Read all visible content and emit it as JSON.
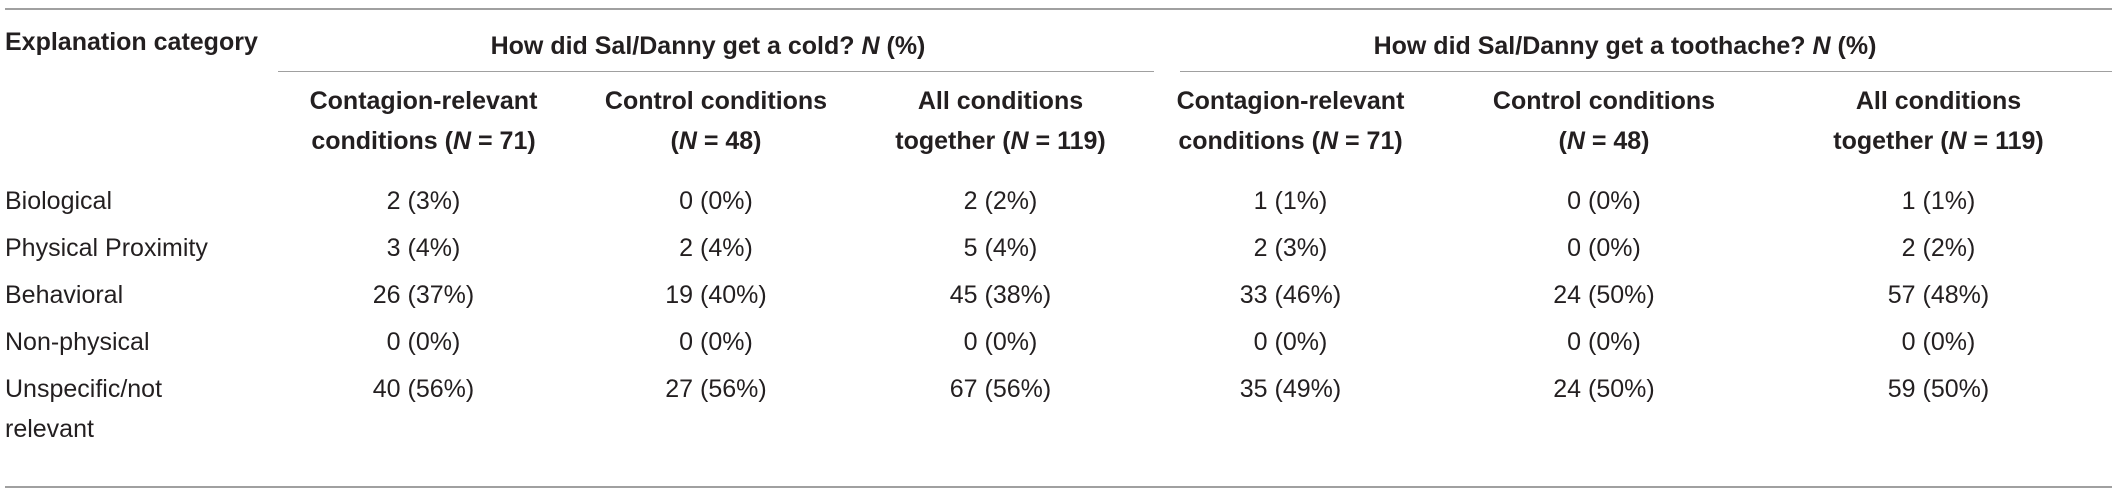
{
  "table": {
    "category_header": "Explanation category",
    "group1_text": "How did Sal/Danny get a cold? ",
    "group2_text": "How did Sal/Danny get a toothache? ",
    "n_symbol": "N",
    "pct_suffix": " (%)",
    "subheaders": [
      {
        "line1": "Contagion-relevant",
        "line2_pre": "conditions (",
        "n_symbol": "N",
        "line2_post": " = 71)"
      },
      {
        "line1": "Control conditions",
        "line2_pre": "(",
        "n_symbol": "N",
        "line2_post": " = 48)"
      },
      {
        "line1": "All conditions",
        "line2_pre": "together (",
        "n_symbol": "N",
        "line2_post": " = 119)"
      },
      {
        "line1": "Contagion-relevant",
        "line2_pre": "conditions (",
        "n_symbol": "N",
        "line2_post": " = 71)"
      },
      {
        "line1": "Control conditions",
        "line2_pre": "(",
        "n_symbol": "N",
        "line2_post": " = 48)"
      },
      {
        "line1": "All conditions",
        "line2_pre": "together (",
        "n_symbol": "N",
        "line2_post": " = 119)"
      }
    ],
    "rows": [
      {
        "label": "Biological",
        "cells": [
          "2 (3%)",
          "0 (0%)",
          "2 (2%)",
          "1 (1%)",
          "0 (0%)",
          "1 (1%)"
        ]
      },
      {
        "label": "Physical Proximity",
        "cells": [
          "3 (4%)",
          "2 (4%)",
          "5 (4%)",
          "2 (3%)",
          "0 (0%)",
          "2 (2%)"
        ]
      },
      {
        "label": "Behavioral",
        "cells": [
          "26 (37%)",
          "19 (40%)",
          "45 (38%)",
          "33 (46%)",
          "24 (50%)",
          "57 (48%)"
        ]
      },
      {
        "label": "Non-physical",
        "cells": [
          "0 (0%)",
          "0 (0%)",
          "0 (0%)",
          "0 (0%)",
          "0 (0%)",
          "0 (0%)"
        ]
      },
      {
        "label": "Unspecific/not relevant",
        "label_line1": "Unspecific/not",
        "label_line2": "relevant",
        "cells": [
          "40 (56%)",
          "27 (56%)",
          "67 (56%)",
          "35 (49%)",
          "24 (50%)",
          "59 (50%)"
        ]
      }
    ]
  }
}
